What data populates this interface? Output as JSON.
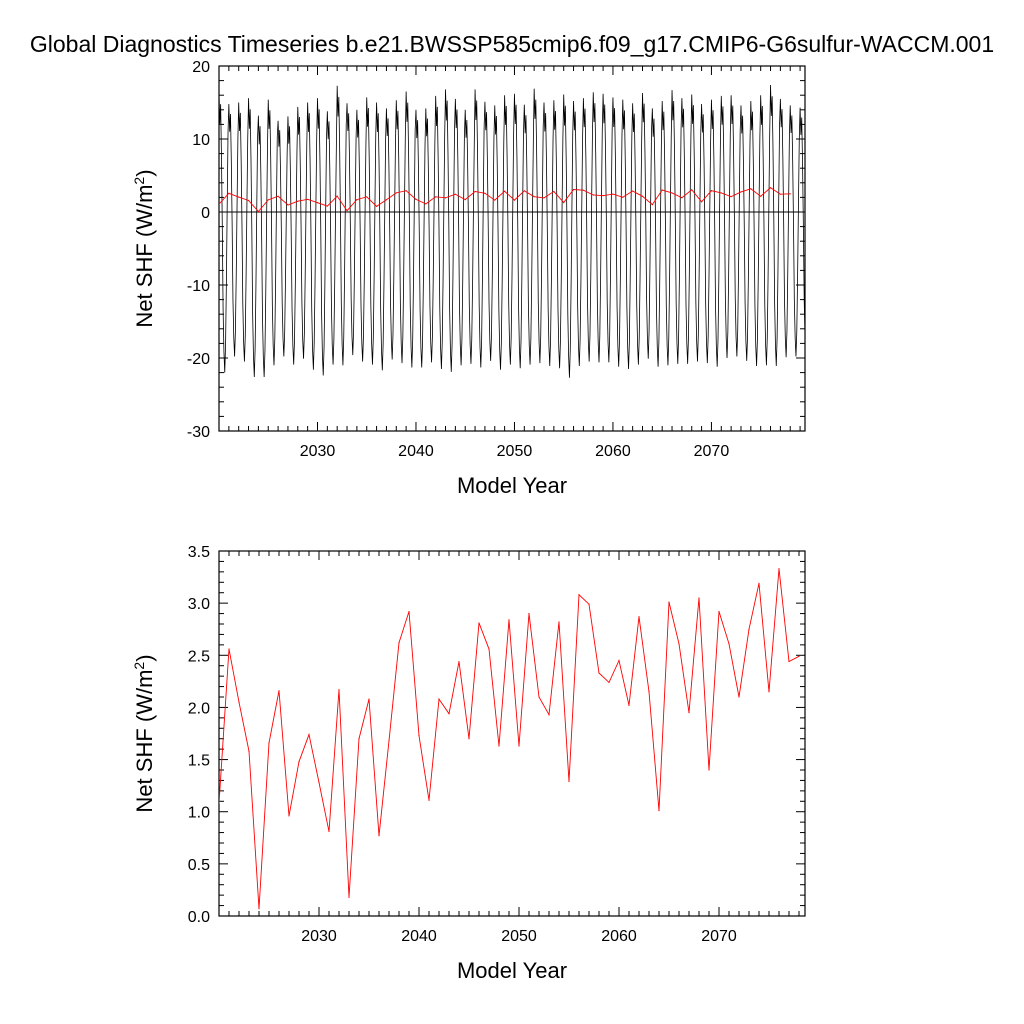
{
  "figure": {
    "title": "Global Diagnostics Timeseries b.e21.BWSSP585cmip6.f09_g17.CMIP6-G6sulfur-WACCM.001"
  },
  "chart_data": [
    {
      "type": "line",
      "title": "Global Diagnostics Timeseries b.e21.BWSSP585cmip6.f09_g17.CMIP6-G6sulfur-WACCM.001",
      "xlabel": "Model Year",
      "ylabel": "Net SHF (W/m",
      "ylabel_superscript": "2",
      "ylabel_close": ")",
      "xlim": [
        2020.0,
        2079.5
      ],
      "ylim": [
        -30,
        20
      ],
      "x_ticks": [
        "2030",
        "2040",
        "2050",
        "2060",
        "2070"
      ],
      "x_tick_values": [
        2030,
        2040,
        2050,
        2060,
        2070
      ],
      "y_ticks": [
        "-30",
        "-20",
        "-10",
        "0",
        "10",
        "20"
      ],
      "y_tick_values": [
        -30,
        -20,
        -10,
        0,
        10,
        20
      ],
      "zero_line": true,
      "grid": false,
      "monthly_series": {
        "start_year": 2020,
        "end_year": 2079,
        "color": "#000000",
        "annual_max_W_m2": [
          16.3,
          14.8,
          15.0,
          15.6,
          13.2,
          15.4,
          12.5,
          13.1,
          14.4,
          15.0,
          15.6,
          13.8,
          17.3,
          14.9,
          14.0,
          15.7,
          15.0,
          14.2,
          15.3,
          16.5,
          14.0,
          14.2,
          15.9,
          16.8,
          15.5,
          14.0,
          16.8,
          15.1,
          14.6,
          16.0,
          16.2,
          14.7,
          16.9,
          15.0,
          15.3,
          16.1,
          15.2,
          15.6,
          16.4,
          16.2,
          15.7,
          15.4,
          14.9,
          16.3,
          14.2,
          15.2,
          16.7,
          15.6,
          16.1,
          14.8,
          15.4,
          15.9,
          16.0,
          14.6,
          15.2,
          16.0,
          17.4,
          15.5,
          14.6,
          14.3
        ],
        "annual_min_W_m2": [
          -22.0,
          -19.8,
          -20.5,
          -22.6,
          -22.6,
          -21.0,
          -19.8,
          -20.9,
          -20.1,
          -21.6,
          -22.4,
          -20.9,
          -21.0,
          -19.6,
          -20.5,
          -20.9,
          -21.7,
          -20.2,
          -20.7,
          -21.3,
          -21.3,
          -20.6,
          -21.5,
          -21.9,
          -21.0,
          -20.8,
          -21.3,
          -20.4,
          -21.6,
          -20.9,
          -21.4,
          -20.9,
          -20.7,
          -21.1,
          -21.4,
          -22.7,
          -21.1,
          -20.5,
          -20.6,
          -20.6,
          -21.2,
          -21.5,
          -20.9,
          -20.1,
          -21.2,
          -21.0,
          -20.8,
          -20.8,
          -20.5,
          -20.7,
          -21.2,
          -20.0,
          -19.8,
          -20.4,
          -21.1,
          -21.0,
          -21.1,
          -19.9,
          -19.8,
          -19.6
        ]
      },
      "series": [
        {
          "color": "#ff0000",
          "x": [
            2020,
            2021,
            2022,
            2023,
            2024,
            2025,
            2026,
            2027,
            2028,
            2029,
            2030,
            2031,
            2032,
            2033,
            2034,
            2035,
            2036,
            2037,
            2038,
            2039,
            2040,
            2041,
            2042,
            2043,
            2044,
            2045,
            2046,
            2047,
            2048,
            2049,
            2050,
            2051,
            2052,
            2053,
            2054,
            2055,
            2056,
            2057,
            2058,
            2059,
            2060,
            2061,
            2062,
            2063,
            2064,
            2065,
            2066,
            2067,
            2068,
            2069,
            2070,
            2071,
            2072,
            2073,
            2074,
            2075,
            2076,
            2077,
            2078
          ],
          "values": [
            1.08,
            2.56,
            2.05,
            1.58,
            0.07,
            1.66,
            2.16,
            0.96,
            1.48,
            1.74,
            1.28,
            0.81,
            2.17,
            0.18,
            1.7,
            2.08,
            0.77,
            1.68,
            2.62,
            2.92,
            1.73,
            1.11,
            2.08,
            1.94,
            2.44,
            1.7,
            2.81,
            2.56,
            1.63,
            2.84,
            1.63,
            2.9,
            2.1,
            1.93,
            2.82,
            1.29,
            3.08,
            2.99,
            2.33,
            2.24,
            2.45,
            2.02,
            2.87,
            2.15,
            1.01,
            3.01,
            2.61,
            1.95,
            3.05,
            1.4,
            2.92,
            2.61,
            2.1,
            2.75,
            3.19,
            2.15,
            3.33,
            2.44,
            2.49
          ]
        }
      ]
    },
    {
      "type": "line",
      "xlabel": "Model Year",
      "ylabel": "Net SHF (W/m",
      "ylabel_superscript": "2",
      "ylabel_close": ")",
      "xlim": [
        2020.0,
        2078.6
      ],
      "ylim": [
        0.0,
        3.5
      ],
      "x_ticks": [
        "2030",
        "2040",
        "2050",
        "2060",
        "2070"
      ],
      "x_tick_values": [
        2030,
        2040,
        2050,
        2060,
        2070
      ],
      "y_ticks": [
        "0.0",
        "0.5",
        "1.0",
        "1.5",
        "2.0",
        "2.5",
        "3.0",
        "3.5"
      ],
      "y_tick_values": [
        0.0,
        0.5,
        1.0,
        1.5,
        2.0,
        2.5,
        3.0,
        3.5
      ],
      "grid": false,
      "series": [
        {
          "color": "#ff0000",
          "x": [
            2020,
            2021,
            2022,
            2023,
            2024,
            2025,
            2026,
            2027,
            2028,
            2029,
            2030,
            2031,
            2032,
            2033,
            2034,
            2035,
            2036,
            2037,
            2038,
            2039,
            2040,
            2041,
            2042,
            2043,
            2044,
            2045,
            2046,
            2047,
            2048,
            2049,
            2050,
            2051,
            2052,
            2053,
            2054,
            2055,
            2056,
            2057,
            2058,
            2059,
            2060,
            2061,
            2062,
            2063,
            2064,
            2065,
            2066,
            2067,
            2068,
            2069,
            2070,
            2071,
            2072,
            2073,
            2074,
            2075,
            2076,
            2077,
            2078
          ],
          "values": [
            1.08,
            2.56,
            2.05,
            1.58,
            0.07,
            1.66,
            2.16,
            0.96,
            1.48,
            1.74,
            1.28,
            0.81,
            2.17,
            0.18,
            1.7,
            2.08,
            0.77,
            1.68,
            2.62,
            2.92,
            1.73,
            1.11,
            2.08,
            1.94,
            2.44,
            1.7,
            2.81,
            2.56,
            1.63,
            2.84,
            1.63,
            2.9,
            2.1,
            1.93,
            2.82,
            1.29,
            3.08,
            2.99,
            2.33,
            2.24,
            2.45,
            2.02,
            2.87,
            2.15,
            1.01,
            3.01,
            2.61,
            1.95,
            3.05,
            1.4,
            2.92,
            2.61,
            2.1,
            2.75,
            3.19,
            2.15,
            3.33,
            2.44,
            2.49
          ]
        }
      ]
    }
  ]
}
